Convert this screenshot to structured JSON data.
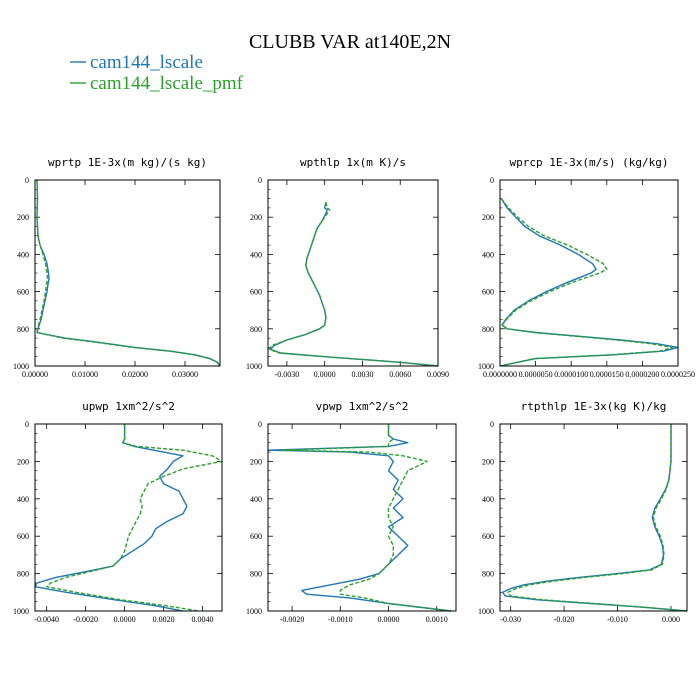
{
  "title": "CLUBB VAR at140E,2N",
  "legend": [
    {
      "label": "cam144_lscale",
      "color": "#1f77b4",
      "dash": "solid"
    },
    {
      "label": "cam144_lscale_pmf",
      "color": "#2ca02c",
      "dash": "dashed"
    }
  ],
  "chart_data": [
    {
      "type": "line",
      "title": "wprtp  1E-3x(m kg)/(s kg)",
      "ylim": [
        1000,
        0
      ],
      "yticks": [
        "0",
        "200",
        "400",
        "600",
        "800",
        "1000"
      ],
      "ytick_values": [
        0,
        200,
        400,
        600,
        800,
        1000
      ],
      "xlim": [
        0,
        0.037
      ],
      "xticks": [
        "0.00000",
        "0.01000",
        "0.02000",
        "0.03000"
      ],
      "xtick_values": [
        0,
        0.01,
        0.02,
        0.03
      ],
      "series": [
        {
          "name": "cam144_lscale",
          "y": [
            0,
            100,
            200,
            300,
            350,
            400,
            450,
            500,
            530,
            560,
            600,
            650,
            700,
            750,
            800,
            820,
            850,
            870,
            900,
            920,
            940,
            960,
            980,
            1000
          ],
          "x": [
            0.0004,
            0.0005,
            0.0004,
            0.0006,
            0.001,
            0.0018,
            0.0024,
            0.0027,
            0.0028,
            0.0026,
            0.0024,
            0.002,
            0.0016,
            0.0012,
            0.0006,
            0.0004,
            0.006,
            0.012,
            0.02,
            0.027,
            0.032,
            0.035,
            0.0365,
            0.037
          ]
        },
        {
          "name": "cam144_lscale_pmf",
          "y": [
            0,
            100,
            200,
            300,
            350,
            400,
            450,
            500,
            530,
            560,
            600,
            650,
            700,
            750,
            800,
            820,
            850,
            870,
            900,
            920,
            940,
            960,
            980,
            1000
          ],
          "x": [
            0.0004,
            0.0005,
            0.0004,
            0.0006,
            0.001,
            0.0016,
            0.0021,
            0.0024,
            0.0025,
            0.0023,
            0.0021,
            0.0018,
            0.0014,
            0.001,
            0.0005,
            0.0004,
            0.0055,
            0.0115,
            0.0195,
            0.0268,
            0.0318,
            0.0349,
            0.0364,
            0.0369
          ]
        }
      ]
    },
    {
      "type": "line",
      "title": "wpthlp  1x(m K)/s",
      "ylim": [
        1000,
        0
      ],
      "yticks": [
        "0",
        "200",
        "400",
        "600",
        "800",
        "1000"
      ],
      "ytick_values": [
        0,
        200,
        400,
        600,
        800,
        1000
      ],
      "xlim": [
        -0.0045,
        0.009
      ],
      "xticks": [
        "-0.0030",
        "0.0000",
        "0.0030",
        "0.0060",
        "0.0090"
      ],
      "xtick_values": [
        -0.003,
        0,
        0.003,
        0.006,
        0.009
      ],
      "series": [
        {
          "name": "cam144_lscale",
          "y": [
            120,
            150,
            160,
            180,
            220,
            260,
            300,
            340,
            380,
            420,
            460,
            500,
            540,
            580,
            620,
            660,
            700,
            740,
            780,
            800,
            830,
            860,
            890,
            910,
            930,
            950,
            980,
            1000
          ],
          "x": [
            0.0001,
            0.0,
            0.0002,
            0.0001,
            -0.0002,
            -0.0006,
            -0.0008,
            -0.001,
            -0.0012,
            -0.0014,
            -0.0015,
            -0.0013,
            -0.001,
            -0.0007,
            -0.0004,
            -0.0002,
            0.0,
            0.0001,
            0.0,
            -0.0004,
            -0.0015,
            -0.003,
            -0.004,
            -0.0043,
            -0.0035,
            0.0,
            0.006,
            0.009
          ]
        },
        {
          "name": "cam144_lscale_pmf",
          "y": [
            120,
            150,
            160,
            180,
            220,
            260,
            300,
            340,
            380,
            420,
            460,
            500,
            540,
            580,
            620,
            660,
            700,
            740,
            780,
            800,
            830,
            860,
            890,
            910,
            930,
            950,
            980,
            1000
          ],
          "x": [
            0.0001,
            0.0002,
            0.0004,
            0.0002,
            -0.0002,
            -0.0006,
            -0.0008,
            -0.001,
            -0.0012,
            -0.0014,
            -0.0015,
            -0.0013,
            -0.001,
            -0.0007,
            -0.0004,
            -0.0002,
            0.0,
            0.0001,
            0.0,
            -0.0004,
            -0.0015,
            -0.003,
            -0.0042,
            -0.0044,
            -0.0036,
            0.0,
            0.006,
            0.009
          ]
        }
      ]
    },
    {
      "type": "line",
      "title": "wprcp  1E-3x(m/s) (kg/kg)",
      "ylim": [
        1000,
        0
      ],
      "yticks": [
        "0",
        "200",
        "400",
        "600",
        "800",
        "1000"
      ],
      "ytick_values": [
        0,
        200,
        400,
        600,
        800,
        1000
      ],
      "xlim": [
        0,
        2.5e-05
      ],
      "xticks": [
        "0.0000000",
        "0.0000050",
        "0.0000100",
        "0.0000150",
        "0.0000200",
        "0.0000250"
      ],
      "xtick_values": [
        0,
        5e-06,
        1e-05,
        1.5e-05,
        2e-05,
        2.5e-05
      ],
      "series": [
        {
          "name": "cam144_lscale",
          "y": [
            100,
            150,
            200,
            250,
            300,
            350,
            400,
            450,
            480,
            500,
            520,
            550,
            600,
            650,
            700,
            750,
            780,
            800,
            820,
            840,
            860,
            880,
            900,
            920,
            940,
            960,
            1000
          ],
          "x": [
            2e-07,
            1e-06,
            2.2e-06,
            3.5e-06,
            5.5e-06,
            8.5e-06,
            1.1e-05,
            1.3e-05,
            1.35e-05,
            1.28e-05,
            1.15e-05,
            9.5e-06,
            6.5e-06,
            4e-06,
            2e-06,
            8e-07,
            3e-07,
            1e-06,
            5e-06,
            1.1e-05,
            1.7e-05,
            2.2e-05,
            2.5e-05,
            2.3e-05,
            1.6e-05,
            5e-06,
            0.0
          ]
        },
        {
          "name": "cam144_lscale_pmf",
          "y": [
            100,
            150,
            200,
            250,
            300,
            350,
            400,
            450,
            480,
            500,
            520,
            550,
            600,
            650,
            700,
            750,
            780,
            800,
            820,
            840,
            860,
            880,
            900,
            920,
            940,
            960,
            1000
          ],
          "x": [
            2e-07,
            1.2e-06,
            2.5e-06,
            4e-06,
            6.2e-06,
            9.5e-06,
            1.22e-05,
            1.45e-05,
            1.5e-05,
            1.4e-05,
            1.25e-05,
            1.02e-05,
            7e-06,
            4.3e-06,
            2.2e-06,
            9e-07,
            3e-07,
            1e-06,
            4.8e-06,
            1.05e-05,
            1.65e-05,
            2.12e-05,
            2.42e-05,
            2.25e-05,
            1.55e-05,
            4.8e-06,
            0.0
          ]
        }
      ]
    },
    {
      "type": "line",
      "title": "upwp  1xm^2/s^2",
      "ylim": [
        1000,
        0
      ],
      "yticks": [
        "0",
        "200",
        "400",
        "600",
        "800",
        "1000"
      ],
      "ytick_values": [
        0,
        200,
        400,
        600,
        800,
        1000
      ],
      "xlim": [
        -0.0046,
        0.005
      ],
      "xticks": [
        "-0.0040",
        "-0.0020",
        "0.0000",
        "0.0020",
        "0.0040"
      ],
      "xtick_values": [
        -0.004,
        -0.002,
        0,
        0.002,
        0.004
      ],
      "series": [
        {
          "name": "cam144_lscale",
          "y": [
            0,
            80,
            100,
            120,
            140,
            170,
            200,
            240,
            280,
            320,
            360,
            400,
            440,
            480,
            520,
            560,
            600,
            640,
            680,
            720,
            760,
            790,
            820,
            850,
            870,
            900,
            940,
            970,
            1000
          ],
          "x": [
            0.0,
            0.0,
            -0.0001,
            0.0005,
            0.0015,
            0.003,
            0.0025,
            0.0022,
            0.0018,
            0.002,
            0.0028,
            0.003,
            0.0032,
            0.003,
            0.0022,
            0.0016,
            0.0014,
            0.001,
            0.0004,
            -0.0002,
            -0.0006,
            -0.002,
            -0.0035,
            -0.0045,
            -0.0046,
            -0.003,
            -0.0005,
            0.0015,
            0.003
          ]
        },
        {
          "name": "cam144_lscale_pmf",
          "y": [
            0,
            80,
            100,
            120,
            140,
            170,
            200,
            240,
            280,
            320,
            360,
            400,
            440,
            480,
            520,
            560,
            600,
            640,
            680,
            720,
            760,
            790,
            820,
            850,
            870,
            900,
            940,
            970,
            1000
          ],
          "x": [
            0.0,
            0.0,
            -0.0001,
            0.0006,
            0.003,
            0.0045,
            0.005,
            0.003,
            0.002,
            0.0012,
            0.001,
            0.0008,
            0.0009,
            0.0008,
            0.0006,
            0.0004,
            0.0002,
            0.0001,
            0.0,
            -0.0002,
            -0.0006,
            -0.0018,
            -0.003,
            -0.0038,
            -0.004,
            -0.0025,
            -0.0002,
            0.002,
            0.0038
          ]
        }
      ]
    },
    {
      "type": "line",
      "title": "vpwp  1xm^2/s^2",
      "ylim": [
        1000,
        0
      ],
      "yticks": [
        "0",
        "200",
        "400",
        "600",
        "800",
        "1000"
      ],
      "ytick_values": [
        0,
        200,
        400,
        600,
        800,
        1000
      ],
      "xlim": [
        -0.0025,
        0.0014
      ],
      "xticks": [
        "-0.0020",
        "-0.0010",
        "0.0000",
        "0.0010"
      ],
      "xtick_values": [
        -0.002,
        -0.001,
        0,
        0.001
      ],
      "series": [
        {
          "name": "cam144_lscale",
          "y": [
            0,
            60,
            80,
            100,
            120,
            140,
            150,
            170,
            200,
            250,
            300,
            350,
            400,
            450,
            500,
            550,
            600,
            650,
            700,
            750,
            800,
            830,
            860,
            890,
            910,
            930,
            960,
            1000
          ],
          "x": [
            0.0,
            0.0,
            0.0001,
            0.0004,
            0.0,
            -0.0025,
            -0.0008,
            0.0,
            0.0001,
            0.0,
            0.0002,
            0.0001,
            0.0003,
            0.0001,
            0.0003,
            0.0,
            0.0002,
            0.0004,
            0.0002,
            0.0,
            -0.0002,
            -0.0006,
            -0.0012,
            -0.0018,
            -0.0017,
            -0.0008,
            0.0,
            0.0013
          ]
        },
        {
          "name": "cam144_lscale_pmf",
          "y": [
            0,
            60,
            80,
            100,
            120,
            140,
            150,
            170,
            200,
            250,
            300,
            350,
            400,
            450,
            500,
            550,
            600,
            650,
            700,
            750,
            800,
            830,
            860,
            890,
            910,
            930,
            960,
            1000
          ],
          "x": [
            0.0,
            0.0,
            0.0001,
            0.0,
            0.0,
            -0.0022,
            -0.0004,
            0.0003,
            0.0008,
            0.0004,
            0.0003,
            0.0002,
            0.0001,
            0.0,
            0.0,
            0.0001,
            0.0,
            0.0001,
            0.0001,
            0.0,
            -0.0002,
            -0.0004,
            -0.0008,
            -0.001,
            -0.001,
            -0.0005,
            0.0,
            0.0013
          ]
        }
      ]
    },
    {
      "type": "line",
      "title": "rtpthlp  1E-3x(kg K)/kg",
      "ylim": [
        1000,
        0
      ],
      "yticks": [
        "0",
        "200",
        "400",
        "600",
        "800",
        "1000"
      ],
      "ytick_values": [
        0,
        200,
        400,
        600,
        800,
        1000
      ],
      "xlim": [
        -0.032,
        0.003
      ],
      "xticks": [
        "-0.030",
        "-0.020",
        "-0.010",
        "0.000"
      ],
      "xtick_values": [
        -0.03,
        -0.02,
        -0.01,
        0
      ],
      "series": [
        {
          "name": "cam144_lscale",
          "y": [
            0,
            100,
            200,
            300,
            350,
            400,
            450,
            500,
            550,
            600,
            650,
            700,
            750,
            780,
            800,
            820,
            840,
            860,
            880,
            900,
            920,
            940,
            960,
            980,
            1000
          ],
          "x": [
            0.0,
            0.0,
            0.0,
            -0.0004,
            -0.001,
            -0.002,
            -0.003,
            -0.0035,
            -0.003,
            -0.0022,
            -0.0016,
            -0.0014,
            -0.0018,
            -0.004,
            -0.01,
            -0.017,
            -0.023,
            -0.0275,
            -0.03,
            -0.0315,
            -0.031,
            -0.025,
            -0.015,
            -0.005,
            0.003
          ]
        },
        {
          "name": "cam144_lscale_pmf",
          "y": [
            0,
            100,
            200,
            300,
            350,
            400,
            450,
            500,
            550,
            600,
            650,
            700,
            750,
            780,
            800,
            820,
            840,
            860,
            880,
            900,
            920,
            940,
            960,
            980,
            1000
          ],
          "x": [
            0.0,
            0.0,
            0.0,
            -0.0004,
            -0.0009,
            -0.0018,
            -0.0028,
            -0.0033,
            -0.0028,
            -0.002,
            -0.0015,
            -0.0013,
            -0.0016,
            -0.0036,
            -0.009,
            -0.016,
            -0.022,
            -0.0265,
            -0.029,
            -0.0305,
            -0.03,
            -0.024,
            -0.0145,
            -0.0048,
            0.003
          ]
        }
      ]
    }
  ]
}
